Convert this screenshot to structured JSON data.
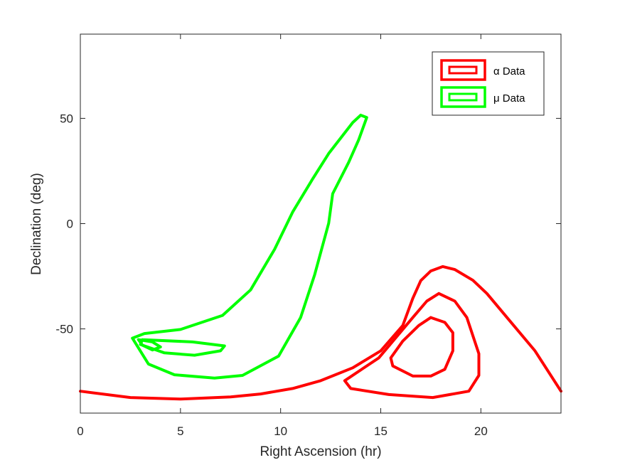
{
  "chart_data": {
    "type": "contour",
    "xlabel": "Right Ascension (hr)",
    "ylabel": "Declination (deg)",
    "xlim": [
      0,
      24
    ],
    "ylim": [
      -90,
      90
    ],
    "xticks": [
      "0",
      "5",
      "10",
      "15",
      "20"
    ],
    "yticks": [
      "-50",
      "0",
      "50"
    ],
    "xtick_values": [
      0,
      5,
      10,
      15,
      20
    ],
    "ytick_values": [
      -50,
      0,
      50
    ],
    "legend_position": "top-right",
    "series": [
      {
        "name": "α Data",
        "color": "#ff0000",
        "contours": [
          [
            [
              0,
              -79.6
            ],
            [
              2.5,
              -82.6
            ],
            [
              5,
              -83.3
            ],
            [
              7.5,
              -82.3
            ],
            [
              9,
              -80.9
            ],
            [
              10.6,
              -78.3
            ],
            [
              12,
              -74.6
            ],
            [
              13.6,
              -68.5
            ],
            [
              15,
              -60.4
            ],
            [
              16.1,
              -48.4
            ],
            [
              16.6,
              -35.5
            ],
            [
              17,
              -27.1
            ],
            [
              17.5,
              -22.5
            ],
            [
              18.1,
              -20.4
            ],
            [
              18.7,
              -21.8
            ],
            [
              19.6,
              -26.9
            ],
            [
              20.3,
              -33.2
            ],
            [
              21.4,
              -45.7
            ],
            [
              22.7,
              -60.4
            ],
            [
              24,
              -79.6
            ]
          ],
          [
            [
              17.9,
              -33.2
            ],
            [
              18.7,
              -36.8
            ],
            [
              19.3,
              -44.6
            ],
            [
              19.9,
              -61.8
            ],
            [
              19.9,
              -72.1
            ],
            [
              19.4,
              -79.6
            ],
            [
              17.6,
              -82.6
            ],
            [
              15.4,
              -81.2
            ],
            [
              13.5,
              -78.3
            ],
            [
              13.2,
              -74.6
            ],
            [
              14.9,
              -63.8
            ],
            [
              16.6,
              -44.6
            ],
            [
              17.3,
              -36.8
            ],
            [
              17.9,
              -33.2
            ]
          ],
          [
            [
              17.5,
              -44.6
            ],
            [
              18.2,
              -46.9
            ],
            [
              18.6,
              -51.8
            ],
            [
              18.6,
              -60.4
            ],
            [
              18.2,
              -69.2
            ],
            [
              17.5,
              -72.4
            ],
            [
              16.6,
              -72.4
            ],
            [
              15.6,
              -67.6
            ],
            [
              15.5,
              -63.8
            ],
            [
              16.1,
              -55.8
            ],
            [
              16.9,
              -48.4
            ],
            [
              17.5,
              -44.6
            ]
          ]
        ]
      },
      {
        "name": "μ Data",
        "color": "#00ff00",
        "contours": [
          [
            [
              14,
              51.5
            ],
            [
              14.3,
              50.4
            ],
            [
              13.9,
              39.8
            ],
            [
              13.4,
              29.1
            ],
            [
              12.6,
              14.2
            ],
            [
              12.4,
              0.2
            ],
            [
              11.7,
              -24.2
            ],
            [
              11,
              -44.6
            ],
            [
              9.9,
              -62.9
            ],
            [
              8.1,
              -72.1
            ],
            [
              6.7,
              -73.4
            ],
            [
              4.7,
              -71.8
            ],
            [
              3.4,
              -66.7
            ],
            [
              2.6,
              -54.4
            ],
            [
              3.2,
              -52.2
            ],
            [
              5,
              -50.3
            ],
            [
              7.1,
              -43.6
            ],
            [
              8.5,
              -31.5
            ],
            [
              9.7,
              -12.2
            ],
            [
              10.6,
              5.5
            ],
            [
              11.6,
              21.2
            ],
            [
              12.4,
              33.3
            ],
            [
              13.6,
              48.0
            ],
            [
              14,
              51.5
            ]
          ],
          [
            [
              3.1,
              -55.1
            ],
            [
              5.6,
              -56.2
            ],
            [
              7.2,
              -58.1
            ],
            [
              7.0,
              -60.4
            ],
            [
              5.7,
              -62.5
            ],
            [
              4.2,
              -61.4
            ],
            [
              3.0,
              -57.4
            ],
            [
              3.1,
              -55.1
            ]
          ],
          [
            [
              2.9,
              -55.1
            ],
            [
              3.6,
              -56.2
            ],
            [
              4.0,
              -58.6
            ],
            [
              3.6,
              -60.0
            ],
            [
              3.1,
              -57.7
            ],
            [
              2.9,
              -55.1
            ]
          ]
        ]
      }
    ]
  }
}
